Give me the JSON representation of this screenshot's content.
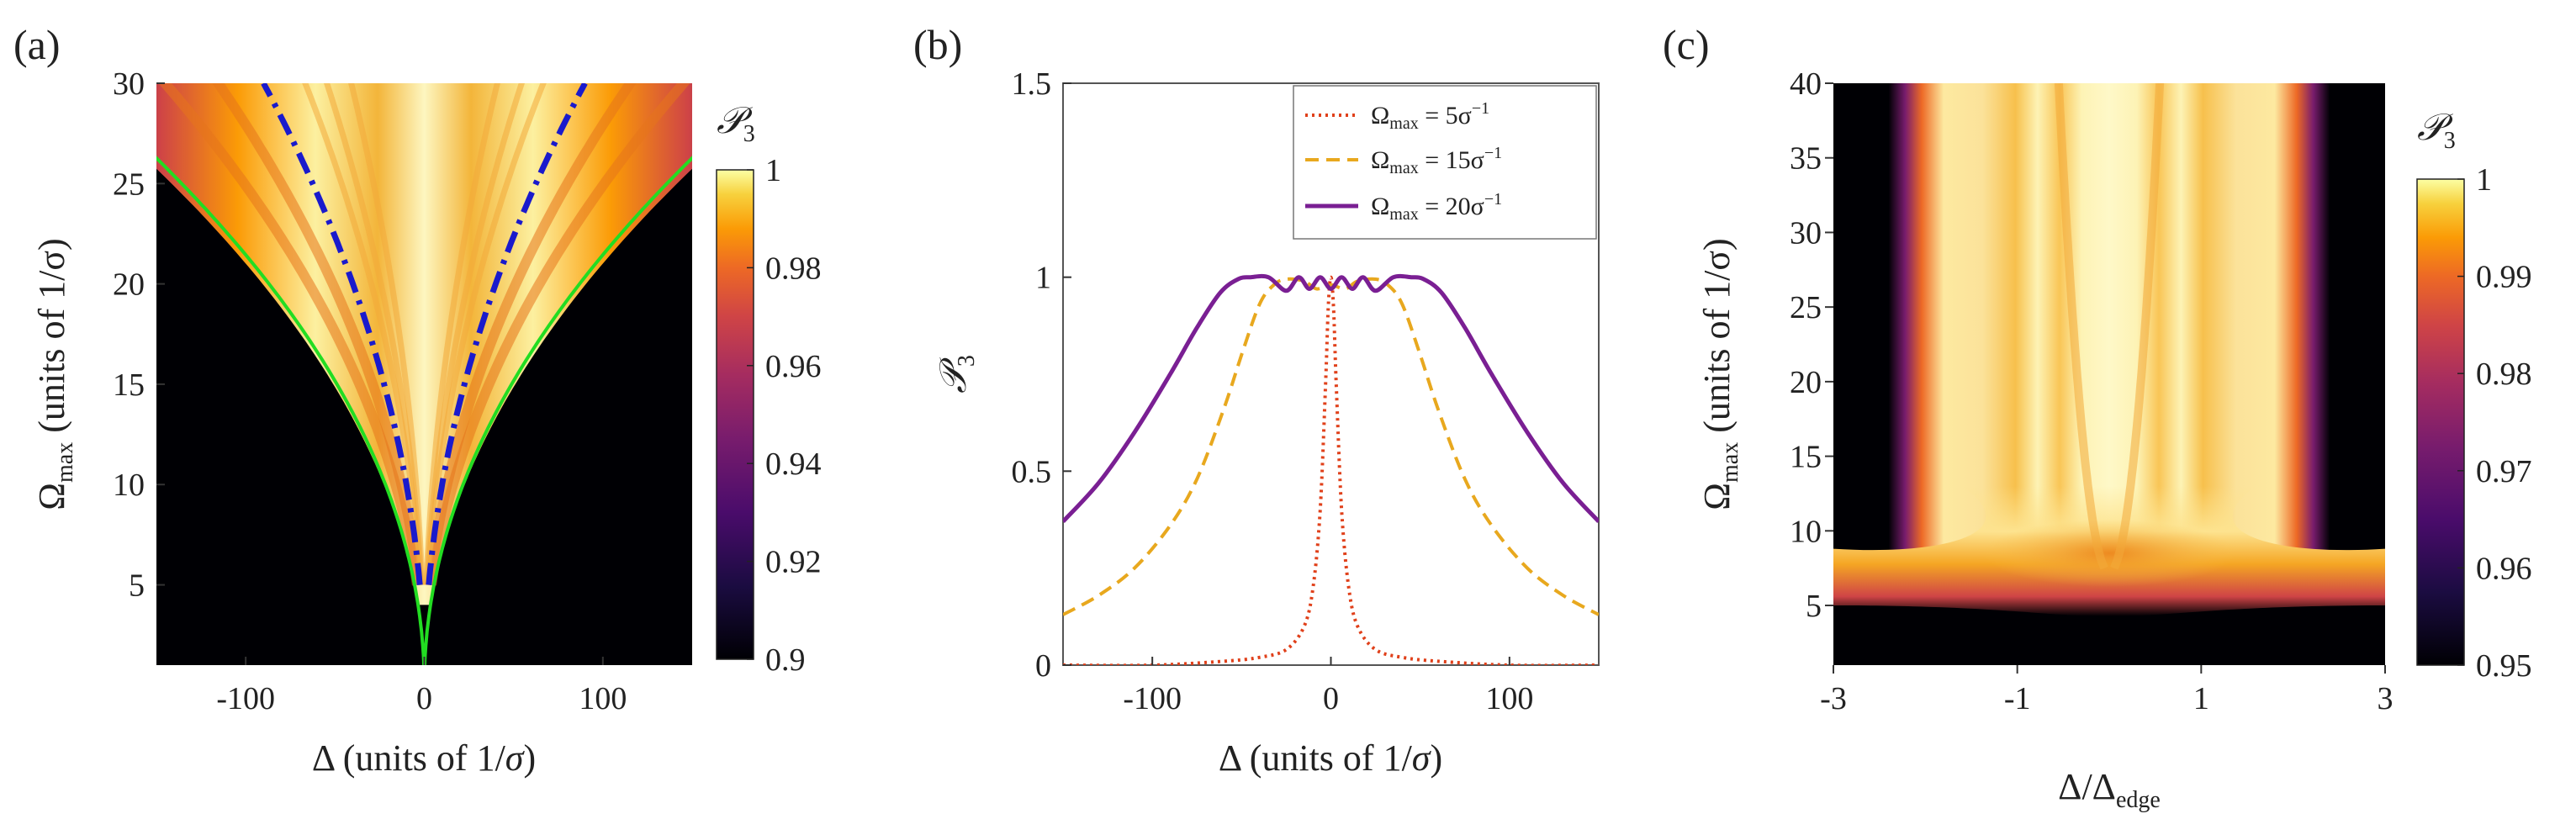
{
  "chart_data": [
    {
      "type": "heatmap",
      "panel_label": "(a)",
      "xlabel": "Δ (units of 1/σ)",
      "xlabel_main": "Δ (units of 1/",
      "xlabel_sym": "σ",
      "xlabel_tail": ")",
      "ylabel_sym": "Ω",
      "ylabel_sub": "max",
      "ylabel_tail": " (units of 1/σ)",
      "xlim": [
        -150,
        150
      ],
      "ylim": [
        1,
        30
      ],
      "xticks": [
        -100,
        0,
        100
      ],
      "xtick_labels": [
        "-100",
        "0",
        "100"
      ],
      "yticks": [
        5,
        10,
        15,
        20,
        25,
        30
      ],
      "ytick_labels": [
        "5",
        "10",
        "15",
        "20",
        "25",
        "30"
      ],
      "colorbar": {
        "title": "𝒫",
        "title_sub": "3",
        "range": [
          0.9,
          1
        ],
        "ticks": [
          0.9,
          0.92,
          0.94,
          0.96,
          0.98,
          1
        ],
        "tick_labels": [
          "0.9",
          "0.92",
          "0.94",
          "0.96",
          "0.98",
          "1"
        ]
      },
      "overlays": [
        {
          "name": "green boundary",
          "style": "solid",
          "color": "#22dd22",
          "relation": "Ω = sqrt(|Δ|·k)",
          "k": 4.6
        },
        {
          "name": "blue dash-dot",
          "style": "dash-dot",
          "color": "#1a1acc",
          "relation": "Ω = sqrt(|Δ|·k)",
          "k": 10.0,
          "start_ymin": 5
        }
      ]
    },
    {
      "type": "line",
      "panel_label": "(b)",
      "xlabel": "Δ (units of 1/σ)",
      "xlabel_main": "Δ (units of 1/",
      "xlabel_sym": "σ",
      "xlabel_tail": ")",
      "ylabel": "𝒫",
      "ylabel_sub": "3",
      "xlim": [
        -150,
        150
      ],
      "ylim": [
        0,
        1.5
      ],
      "xticks": [
        -100,
        0,
        100
      ],
      "xtick_labels": [
        "-100",
        "0",
        "100"
      ],
      "yticks": [
        0,
        0.5,
        1,
        1.5
      ],
      "ytick_labels": [
        "0",
        "0.5",
        "1",
        "1.5"
      ],
      "series": [
        {
          "name": "Ω_max = 5σ^-1",
          "legend_main": "Ω",
          "legend_sub": "max",
          "legend_eq": " = 5σ",
          "legend_sup": "−1",
          "color": "#e0401a",
          "style": "dotted",
          "x": [
            -150,
            -100,
            -60,
            -40,
            -25,
            -15,
            -10,
            -6,
            -3,
            -1.5,
            0,
            1.5,
            3,
            6,
            10,
            15,
            25,
            40,
            60,
            100,
            150
          ],
          "y": [
            0,
            0,
            0.01,
            0.02,
            0.04,
            0.1,
            0.2,
            0.4,
            0.72,
            0.92,
            1,
            0.92,
            0.72,
            0.4,
            0.2,
            0.1,
            0.04,
            0.02,
            0.01,
            0,
            0
          ]
        },
        {
          "name": "Ω_max = 15σ^-1",
          "legend_main": "Ω",
          "legend_sub": "max",
          "legend_eq": " = 15σ",
          "legend_sup": "−1",
          "color": "#e8a81e",
          "style": "dashed",
          "x": [
            -150,
            -130,
            -110,
            -90,
            -75,
            -60,
            -50,
            -40,
            -32,
            -25,
            -15,
            -8,
            0,
            8,
            15,
            25,
            32,
            40,
            50,
            60,
            75,
            90,
            110,
            130,
            150
          ],
          "y": [
            0.13,
            0.18,
            0.25,
            0.36,
            0.48,
            0.66,
            0.8,
            0.93,
            0.98,
            0.995,
            0.99,
            0.97,
            0.98,
            0.97,
            0.99,
            0.995,
            0.98,
            0.93,
            0.8,
            0.66,
            0.48,
            0.36,
            0.25,
            0.18,
            0.13
          ],
          "shape": "plateau"
        },
        {
          "name": "Ω_max = 20σ^-1",
          "legend_main": "Ω",
          "legend_sub": "max",
          "legend_eq": " = 20σ",
          "legend_sup": "−1",
          "color": "#7a1f93",
          "style": "solid",
          "x": [
            -150,
            -130,
            -110,
            -90,
            -75,
            -62,
            -52,
            -45,
            -35,
            -25,
            -18,
            -12,
            -6,
            0,
            6,
            12,
            18,
            25,
            35,
            45,
            52,
            62,
            75,
            90,
            110,
            130,
            150
          ],
          "y": [
            0.37,
            0.47,
            0.6,
            0.75,
            0.87,
            0.96,
            0.995,
            1,
            1,
            0.965,
            1,
            0.97,
            1,
            0.97,
            1,
            0.97,
            1,
            0.965,
            1,
            1,
            0.995,
            0.96,
            0.87,
            0.75,
            0.6,
            0.47,
            0.37
          ]
        }
      ]
    },
    {
      "type": "heatmap",
      "panel_label": "(c)",
      "xlabel": "Δ/Δ_edge",
      "xlabel_main": "Δ/Δ",
      "xlabel_sub": "edge",
      "ylabel_sym": "Ω",
      "ylabel_sub": "max",
      "ylabel_tail": " (units of 1/σ)",
      "xlim": [
        -3,
        3
      ],
      "ylim": [
        1,
        40
      ],
      "xticks": [
        -3,
        -1,
        1,
        3
      ],
      "xtick_labels": [
        "-3",
        "-1",
        "1",
        "3"
      ],
      "yticks": [
        5,
        10,
        15,
        20,
        25,
        30,
        35,
        40
      ],
      "ytick_labels": [
        "5",
        "10",
        "15",
        "20",
        "25",
        "30",
        "35",
        "40"
      ],
      "colorbar": {
        "title": "𝒫",
        "title_sub": "3",
        "range": [
          0.95,
          1
        ],
        "ticks": [
          0.95,
          0.96,
          0.97,
          0.98,
          0.99,
          1
        ],
        "tick_labels": [
          "0.95",
          "0.96",
          "0.97",
          "0.98",
          "0.99",
          "1"
        ]
      }
    }
  ]
}
